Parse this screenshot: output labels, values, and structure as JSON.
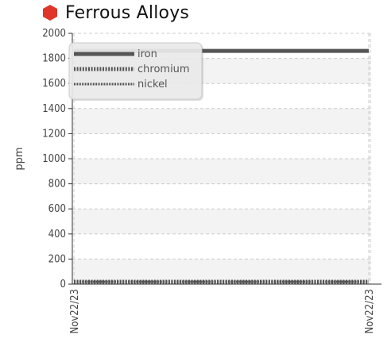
{
  "title": "Ferrous Alloys",
  "title_icon": "hexagon-icon",
  "colors": {
    "icon": "#e0352b",
    "series": "#555555",
    "grid": "#cccccc",
    "band": "#f3f3f3"
  },
  "chart_data": {
    "type": "line",
    "title": "Ferrous Alloys",
    "xlabel": "",
    "ylabel": "ppm",
    "ylim": [
      0,
      2000
    ],
    "yticks": [
      0,
      200,
      400,
      600,
      800,
      1000,
      1200,
      1400,
      1600,
      1800,
      2000
    ],
    "x": [
      "Nov22/23",
      "Nov22/23"
    ],
    "xtick_labels": [
      "Nov22/23",
      "Nov22/23"
    ],
    "grid": true,
    "legend": "top-left",
    "series": [
      {
        "name": "iron",
        "style": "solid",
        "values": [
          1860,
          1860
        ]
      },
      {
        "name": "chromium",
        "style": "dotted",
        "values": [
          0,
          0
        ]
      },
      {
        "name": "nickel",
        "style": "dashed",
        "values": [
          0,
          0
        ]
      }
    ]
  }
}
